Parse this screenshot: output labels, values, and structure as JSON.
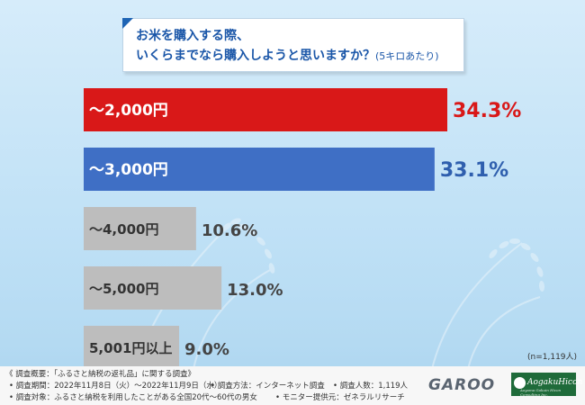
{
  "question": {
    "line1": "お米を購入する際、",
    "line2": "いくらまでなら購入しようと思いますか？",
    "note": "(5キロあたり)"
  },
  "sample_note": "(n=1,119人)",
  "colors": {
    "bar_top1": "#d91818",
    "bar_top2": "#3f6fc5",
    "bar_other": "#bdbdbd",
    "value_red": "#d91818",
    "value_blue": "#2f5fae",
    "value_gray": "#444444"
  },
  "chart_data": {
    "type": "bar",
    "orientation": "horizontal",
    "categories": [
      "～2,000円",
      "～3,000円",
      "～4,000円",
      "～5,000円",
      "5,001円以上"
    ],
    "values": [
      34.3,
      33.1,
      10.6,
      13.0,
      9.0
    ],
    "value_labels": [
      "34.3%",
      "33.1%",
      "10.6%",
      "13.0%",
      "9.0%"
    ],
    "unit": "%",
    "xlim": [
      0,
      40
    ],
    "grid": false,
    "legend": "none"
  },
  "footer": {
    "line1": "《 調査概要：「ふるさと納税の返礼品」に関する調査》",
    "period": "• 調査期間：2022年11月8日（火）～2022年11月9日（水）",
    "method": "• 調査方法：インターネット調査",
    "count": "• 調査人数：1,119人",
    "target": "• 調査対象：ふるさと納税を利用したことがある全国20代～60代の男女",
    "provider": "• モニター提供元：ゼネラルリサーチ"
  },
  "logos": {
    "garoo": "GAROO",
    "aogaku": "AogakuHicon",
    "aogaku_sub": "Aoyama Gakuin Hicon Consulting Inc."
  }
}
